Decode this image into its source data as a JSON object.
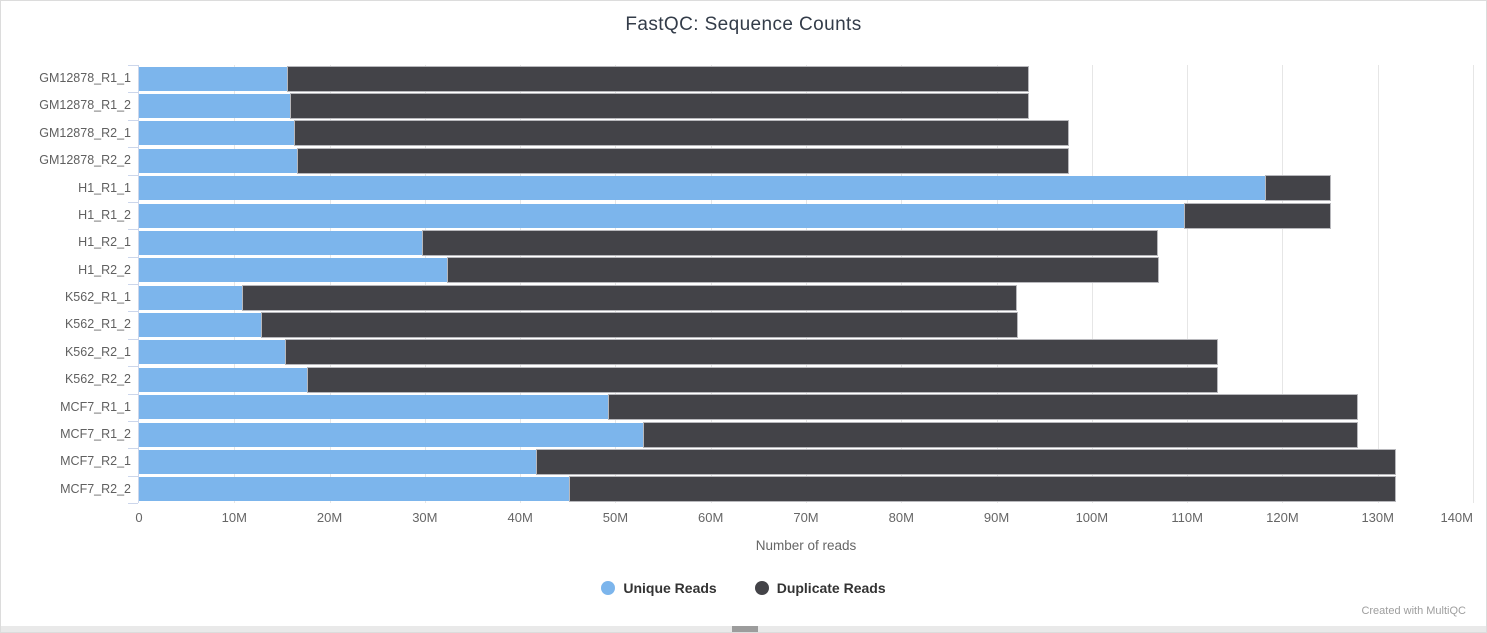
{
  "chart_data": {
    "type": "bar",
    "orientation": "horizontal",
    "stacked": true,
    "title": "FastQC: Sequence Counts",
    "xlabel": "Number of reads",
    "values_unit": "millions of reads",
    "xlim_millions": [
      0,
      140
    ],
    "x_tick_labels": [
      "0",
      "10M",
      "20M",
      "30M",
      "40M",
      "50M",
      "60M",
      "70M",
      "80M",
      "90M",
      "100M",
      "110M",
      "120M",
      "130M",
      "140M"
    ],
    "x_tick_values_millions": [
      0,
      10,
      20,
      30,
      40,
      50,
      60,
      70,
      80,
      90,
      100,
      110,
      120,
      130,
      140
    ],
    "grid": true,
    "legend_position": "bottom-center",
    "categories": [
      "GM12878_R1_1",
      "GM12878_R1_2",
      "GM12878_R2_1",
      "GM12878_R2_2",
      "H1_R1_1",
      "H1_R1_2",
      "H1_R2_1",
      "H1_R2_2",
      "K562_R1_1",
      "K562_R1_2",
      "K562_R2_1",
      "K562_R2_2",
      "MCF7_R1_1",
      "MCF7_R1_2",
      "MCF7_R2_1",
      "MCF7_R2_2"
    ],
    "series": [
      {
        "name": "Unique Reads",
        "color": "#7cb5ec",
        "values": [
          15.6,
          16.0,
          16.4,
          16.7,
          118.3,
          109.8,
          29.8,
          32.4,
          10.9,
          12.9,
          15.4,
          17.7,
          49.3,
          53.0,
          41.8,
          45.2
        ]
      },
      {
        "name": "Duplicate Reads",
        "color": "#434348",
        "values": [
          77.7,
          77.3,
          81.1,
          80.8,
          6.7,
          15.2,
          77.0,
          74.5,
          81.1,
          79.2,
          97.7,
          95.4,
          78.5,
          74.8,
          90.0,
          86.6
        ]
      }
    ],
    "totals_millions": [
      93.3,
      93.3,
      97.5,
      97.5,
      125.0,
      125.0,
      106.8,
      106.9,
      92.0,
      92.1,
      113.1,
      113.1,
      127.8,
      127.8,
      131.8,
      131.8
    ],
    "colors": {
      "gridline": "#e6e6e6",
      "axis_line": "#ccd6eb",
      "axis_label": "#666666",
      "title_text": "#333c49",
      "legend_text": "#333333"
    }
  },
  "footer": {
    "credit": "Created with MultiQC"
  }
}
